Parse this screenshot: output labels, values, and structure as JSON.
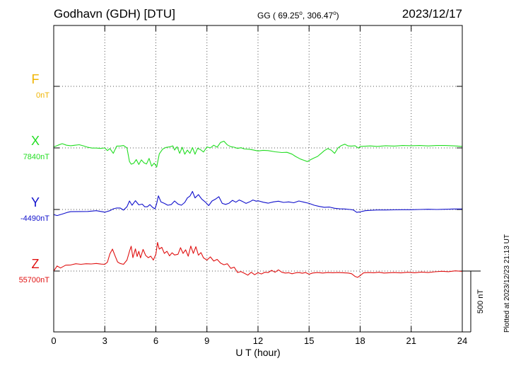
{
  "header": {
    "station": "Godhavn (GDH)  [DTU]",
    "coords_prefix": "GG ( 69.25",
    "coords_mid": ", 306.47",
    "coords_suffix": ")",
    "degree": "o",
    "date": "2023/12/17"
  },
  "footer_note": "Plotted at 2023/12/23 21:13 UT",
  "chart_data": {
    "type": "line",
    "xlabel": "U T (hour)",
    "xlim": [
      0,
      24
    ],
    "xticks": [
      "0",
      "3",
      "6",
      "9",
      "12",
      "15",
      "18",
      "21",
      "24"
    ],
    "scale_bar_label": "500 nT",
    "scale_bar_nT": 500,
    "grid": true,
    "colors": {
      "F": "#f0b400",
      "X": "#22dd22",
      "Y": "#1010cc",
      "Z": "#e01010"
    },
    "series": [
      {
        "name": "F",
        "baseline_label": "0nT",
        "baseline_nT": 0,
        "points": []
      },
      {
        "name": "X",
        "baseline_label": "7840nT",
        "baseline_nT": 7840,
        "points": [
          [
            0,
            7848
          ],
          [
            0.25,
            7862
          ],
          [
            0.5,
            7875
          ],
          [
            0.75,
            7862
          ],
          [
            1,
            7858
          ],
          [
            1.25,
            7862
          ],
          [
            1.5,
            7866
          ],
          [
            1.75,
            7857
          ],
          [
            2,
            7845
          ],
          [
            2.25,
            7839
          ],
          [
            2.5,
            7839
          ],
          [
            2.75,
            7836
          ],
          [
            3,
            7840
          ],
          [
            3.15,
            7818
          ],
          [
            3.3,
            7835
          ],
          [
            3.5,
            7795
          ],
          [
            3.7,
            7855
          ],
          [
            3.9,
            7855
          ],
          [
            4.1,
            7860
          ],
          [
            4.3,
            7840
          ],
          [
            4.45,
            7728
          ],
          [
            4.55,
            7706
          ],
          [
            4.7,
            7714
          ],
          [
            4.85,
            7744
          ],
          [
            5,
            7704
          ],
          [
            5.15,
            7742
          ],
          [
            5.3,
            7718
          ],
          [
            5.45,
            7708
          ],
          [
            5.6,
            7754
          ],
          [
            5.75,
            7690
          ],
          [
            5.9,
            7715
          ],
          [
            6.05,
            7683
          ],
          [
            6.2,
            7790
          ],
          [
            6.4,
            7830
          ],
          [
            6.6,
            7844
          ],
          [
            6.8,
            7848
          ],
          [
            7,
            7856
          ],
          [
            7.1,
            7822
          ],
          [
            7.25,
            7850
          ],
          [
            7.4,
            7795
          ],
          [
            7.55,
            7845
          ],
          [
            7.7,
            7788
          ],
          [
            7.85,
            7822
          ],
          [
            8,
            7795
          ],
          [
            8.15,
            7843
          ],
          [
            8.3,
            7788
          ],
          [
            8.45,
            7836
          ],
          [
            8.6,
            7828
          ],
          [
            8.8,
            7806
          ],
          [
            9,
            7848
          ],
          [
            9.2,
            7840
          ],
          [
            9.4,
            7862
          ],
          [
            9.6,
            7846
          ],
          [
            9.8,
            7885
          ],
          [
            10,
            7895
          ],
          [
            10.2,
            7865
          ],
          [
            10.4,
            7850
          ],
          [
            10.6,
            7846
          ],
          [
            10.8,
            7836
          ],
          [
            11,
            7842
          ],
          [
            11.2,
            7831
          ],
          [
            11.5,
            7829
          ],
          [
            11.75,
            7822
          ],
          [
            12,
            7815
          ],
          [
            12.3,
            7820
          ],
          [
            12.6,
            7818
          ],
          [
            13,
            7808
          ],
          [
            13.4,
            7802
          ],
          [
            13.7,
            7804
          ],
          [
            14,
            7789
          ],
          [
            14.2,
            7770
          ],
          [
            14.5,
            7748
          ],
          [
            14.7,
            7738
          ],
          [
            14.9,
            7728
          ],
          [
            15.1,
            7744
          ],
          [
            15.3,
            7758
          ],
          [
            15.5,
            7770
          ],
          [
            15.7,
            7794
          ],
          [
            15.9,
            7818
          ],
          [
            16.1,
            7834
          ],
          [
            16.3,
            7822
          ],
          [
            16.5,
            7795
          ],
          [
            16.7,
            7840
          ],
          [
            16.9,
            7860
          ],
          [
            17.1,
            7870
          ],
          [
            17.3,
            7856
          ],
          [
            17.5,
            7855
          ],
          [
            17.7,
            7858
          ],
          [
            17.9,
            7838
          ],
          [
            18,
            7852
          ],
          [
            18.3,
            7854
          ],
          [
            18.6,
            7856
          ],
          [
            19,
            7852
          ],
          [
            19.5,
            7858
          ],
          [
            20,
            7855
          ],
          [
            20.5,
            7860
          ],
          [
            21,
            7858
          ],
          [
            21.5,
            7860
          ],
          [
            22,
            7856
          ],
          [
            22.5,
            7860
          ],
          [
            23,
            7860
          ],
          [
            23.5,
            7857
          ],
          [
            24,
            7852
          ]
        ]
      },
      {
        "name": "Y",
        "baseline_label": "-4490nT",
        "baseline_nT": -4490,
        "points": [
          [
            0,
            -4532
          ],
          [
            0.2,
            -4540
          ],
          [
            0.5,
            -4528
          ],
          [
            0.8,
            -4514
          ],
          [
            1,
            -4508
          ],
          [
            1.5,
            -4507
          ],
          [
            2,
            -4506
          ],
          [
            2.5,
            -4500
          ],
          [
            3,
            -4512
          ],
          [
            3.1,
            -4508
          ],
          [
            3.3,
            -4500
          ],
          [
            3.5,
            -4485
          ],
          [
            3.7,
            -4478
          ],
          [
            3.9,
            -4478
          ],
          [
            4.1,
            -4495
          ],
          [
            4.3,
            -4468
          ],
          [
            4.45,
            -4420
          ],
          [
            4.6,
            -4455
          ],
          [
            4.8,
            -4418
          ],
          [
            5,
            -4452
          ],
          [
            5.2,
            -4446
          ],
          [
            5.35,
            -4468
          ],
          [
            5.5,
            -4468
          ],
          [
            5.65,
            -4450
          ],
          [
            5.8,
            -4472
          ],
          [
            5.95,
            -4485
          ],
          [
            6.05,
            -4440
          ],
          [
            6.15,
            -4378
          ],
          [
            6.3,
            -4428
          ],
          [
            6.5,
            -4440
          ],
          [
            6.7,
            -4455
          ],
          [
            6.9,
            -4450
          ],
          [
            7.1,
            -4420
          ],
          [
            7.3,
            -4445
          ],
          [
            7.5,
            -4455
          ],
          [
            7.7,
            -4432
          ],
          [
            7.85,
            -4395
          ],
          [
            8,
            -4380
          ],
          [
            8.15,
            -4342
          ],
          [
            8.3,
            -4395
          ],
          [
            8.5,
            -4368
          ],
          [
            8.7,
            -4405
          ],
          [
            8.9,
            -4428
          ],
          [
            9.1,
            -4458
          ],
          [
            9.3,
            -4420
          ],
          [
            9.5,
            -4405
          ],
          [
            9.7,
            -4385
          ],
          [
            9.9,
            -4440
          ],
          [
            10.1,
            -4448
          ],
          [
            10.3,
            -4438
          ],
          [
            10.5,
            -4415
          ],
          [
            10.7,
            -4430
          ],
          [
            10.9,
            -4412
          ],
          [
            11.1,
            -4425
          ],
          [
            11.3,
            -4440
          ],
          [
            11.5,
            -4428
          ],
          [
            11.7,
            -4412
          ],
          [
            11.9,
            -4422
          ],
          [
            12,
            -4418
          ],
          [
            12.3,
            -4430
          ],
          [
            12.6,
            -4438
          ],
          [
            12.9,
            -4428
          ],
          [
            13.2,
            -4422
          ],
          [
            13.5,
            -4432
          ],
          [
            13.8,
            -4428
          ],
          [
            14.1,
            -4435
          ],
          [
            14.4,
            -4420
          ],
          [
            14.7,
            -4430
          ],
          [
            15,
            -4440
          ],
          [
            15.3,
            -4455
          ],
          [
            15.6,
            -4465
          ],
          [
            15.9,
            -4472
          ],
          [
            16.2,
            -4470
          ],
          [
            16.5,
            -4480
          ],
          [
            16.8,
            -4485
          ],
          [
            17.1,
            -4486
          ],
          [
            17.4,
            -4490
          ],
          [
            17.6,
            -4494
          ],
          [
            17.8,
            -4514
          ],
          [
            18,
            -4510
          ],
          [
            18.3,
            -4500
          ],
          [
            18.6,
            -4497
          ],
          [
            19,
            -4494
          ],
          [
            19.5,
            -4494
          ],
          [
            20,
            -4493
          ],
          [
            20.5,
            -4492
          ],
          [
            21,
            -4492
          ],
          [
            21.5,
            -4490
          ],
          [
            22,
            -4488
          ],
          [
            22.5,
            -4490
          ],
          [
            23,
            -4488
          ],
          [
            23.5,
            -4486
          ],
          [
            24,
            -4486
          ]
        ]
      },
      {
        "name": "Z",
        "baseline_label": "55700nT",
        "baseline_nT": 55700,
        "points": [
          [
            0,
            55700
          ],
          [
            0.2,
            55742
          ],
          [
            0.4,
            55725
          ],
          [
            0.7,
            55748
          ],
          [
            1,
            55750
          ],
          [
            1.3,
            55760
          ],
          [
            1.6,
            55755
          ],
          [
            1.9,
            55760
          ],
          [
            2.2,
            55758
          ],
          [
            2.5,
            55762
          ],
          [
            2.8,
            55757
          ],
          [
            3,
            55755
          ],
          [
            3.15,
            55772
          ],
          [
            3.3,
            55842
          ],
          [
            3.45,
            55880
          ],
          [
            3.6,
            55826
          ],
          [
            3.75,
            55775
          ],
          [
            3.9,
            55762
          ],
          [
            4.1,
            55755
          ],
          [
            4.3,
            55790
          ],
          [
            4.45,
            55862
          ],
          [
            4.55,
            55904
          ],
          [
            4.65,
            55810
          ],
          [
            4.8,
            55882
          ],
          [
            4.9,
            55820
          ],
          [
            5,
            55862
          ],
          [
            5.1,
            55808
          ],
          [
            5.25,
            55878
          ],
          [
            5.4,
            55828
          ],
          [
            5.55,
            55810
          ],
          [
            5.7,
            55822
          ],
          [
            5.85,
            55790
          ],
          [
            6,
            55838
          ],
          [
            6.1,
            55935
          ],
          [
            6.2,
            55880
          ],
          [
            6.35,
            55895
          ],
          [
            6.5,
            55845
          ],
          [
            6.65,
            55862
          ],
          [
            6.8,
            55825
          ],
          [
            6.95,
            55850
          ],
          [
            7.1,
            55832
          ],
          [
            7.3,
            55838
          ],
          [
            7.45,
            55892
          ],
          [
            7.6,
            55845
          ],
          [
            7.75,
            55875
          ],
          [
            7.9,
            55822
          ],
          [
            8.05,
            55905
          ],
          [
            8.2,
            55845
          ],
          [
            8.35,
            55900
          ],
          [
            8.5,
            55830
          ],
          [
            8.65,
            55852
          ],
          [
            8.8,
            55808
          ],
          [
            9,
            55790
          ],
          [
            9.2,
            55816
          ],
          [
            9.4,
            55782
          ],
          [
            9.6,
            55796
          ],
          [
            9.8,
            55765
          ],
          [
            10,
            55752
          ],
          [
            10.2,
            55760
          ],
          [
            10.4,
            55722
          ],
          [
            10.6,
            55732
          ],
          [
            10.8,
            55688
          ],
          [
            11,
            55696
          ],
          [
            11.2,
            55682
          ],
          [
            11.4,
            55666
          ],
          [
            11.6,
            55690
          ],
          [
            11.8,
            55670
          ],
          [
            12,
            55686
          ],
          [
            12.2,
            55676
          ],
          [
            12.4,
            55690
          ],
          [
            12.6,
            55688
          ],
          [
            12.8,
            55706
          ],
          [
            13,
            55690
          ],
          [
            13.2,
            55710
          ],
          [
            13.4,
            55690
          ],
          [
            13.6,
            55684
          ],
          [
            13.8,
            55686
          ],
          [
            14,
            55678
          ],
          [
            14.2,
            55685
          ],
          [
            14.4,
            55688
          ],
          [
            14.6,
            55682
          ],
          [
            14.8,
            55688
          ],
          [
            15,
            55674
          ],
          [
            15.2,
            55684
          ],
          [
            15.5,
            55688
          ],
          [
            15.8,
            55684
          ],
          [
            16.1,
            55688
          ],
          [
            16.4,
            55686
          ],
          [
            16.7,
            55688
          ],
          [
            17,
            55686
          ],
          [
            17.3,
            55684
          ],
          [
            17.5,
            55678
          ],
          [
            17.7,
            55656
          ],
          [
            17.85,
            55648
          ],
          [
            18,
            55662
          ],
          [
            18.2,
            55685
          ],
          [
            18.5,
            55688
          ],
          [
            18.8,
            55686
          ],
          [
            19.1,
            55690
          ],
          [
            19.4,
            55684
          ],
          [
            19.7,
            55686
          ],
          [
            20,
            55688
          ],
          [
            20.4,
            55685
          ],
          [
            20.8,
            55690
          ],
          [
            21.2,
            55686
          ],
          [
            21.6,
            55692
          ],
          [
            22,
            55688
          ],
          [
            22.4,
            55694
          ],
          [
            22.8,
            55698
          ],
          [
            23.2,
            55695
          ],
          [
            23.6,
            55702
          ],
          [
            24,
            55697
          ]
        ]
      }
    ]
  }
}
